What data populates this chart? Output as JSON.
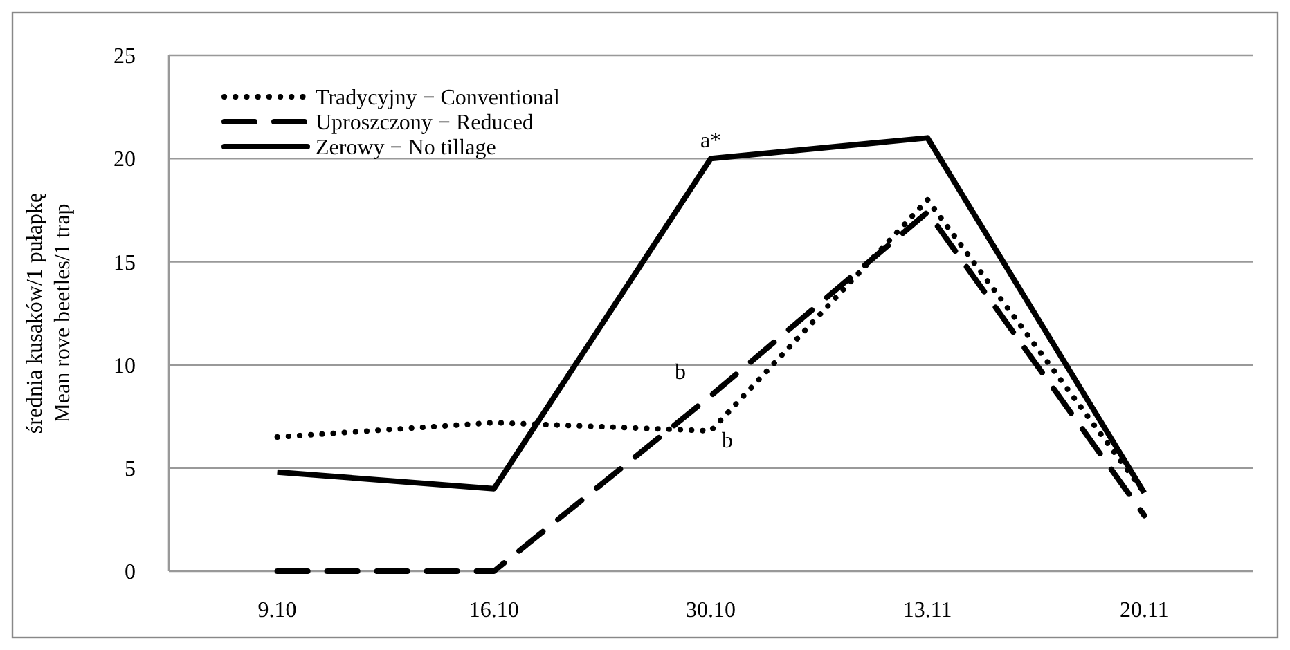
{
  "chart_data": {
    "type": "line",
    "ylabel": "średnia kusaków/1 pułapkę\nMean rove beetles/1 trap",
    "categories": [
      "9.10",
      "16.10",
      "30.10",
      "13.11",
      "20.11"
    ],
    "series": [
      {
        "name": "Tradycyjny − Conventional",
        "color": "#000000",
        "line_style": "dotted",
        "values": [
          6.5,
          7.2,
          6.8,
          18.0,
          3.8
        ]
      },
      {
        "name": "Uproszczony − Reduced",
        "color": "#000000",
        "line_style": "dashed",
        "values": [
          0,
          0,
          8.5,
          17.4,
          2.7
        ]
      },
      {
        "name": "Zerowy − No tillage",
        "color": "#000000",
        "line_style": "solid",
        "values": [
          4.8,
          4.0,
          20.0,
          21.0,
          3.8
        ]
      }
    ],
    "annotations": [
      {
        "text": "a*",
        "x": "30.10",
        "y": 20.0
      },
      {
        "text": "b",
        "x": "30.10",
        "y": 8.5
      },
      {
        "text": "b",
        "x": "30.10",
        "y": 6.8
      }
    ],
    "ylim": [
      0,
      25
    ],
    "yticks": [
      0,
      5,
      10,
      15,
      20,
      25
    ],
    "grid": "y",
    "legend": "top left",
    "marker": "none"
  }
}
